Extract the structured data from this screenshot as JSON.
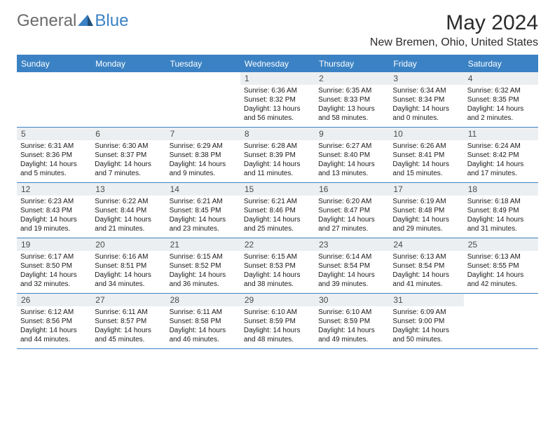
{
  "logo": {
    "part1": "General",
    "part2": "Blue"
  },
  "title": "May 2024",
  "location": "New Bremen, Ohio, United States",
  "colors": {
    "header_bg": "#3b82c4",
    "header_text": "#ffffff",
    "daynum_bg": "#eceff1",
    "border": "#3b82c4",
    "logo_gray": "#6b6b6b",
    "logo_blue": "#3b82c4"
  },
  "day_names": [
    "Sunday",
    "Monday",
    "Tuesday",
    "Wednesday",
    "Thursday",
    "Friday",
    "Saturday"
  ],
  "weeks": [
    [
      {
        "n": "",
        "sr": "",
        "ss": "",
        "dl": ""
      },
      {
        "n": "",
        "sr": "",
        "ss": "",
        "dl": ""
      },
      {
        "n": "",
        "sr": "",
        "ss": "",
        "dl": ""
      },
      {
        "n": "1",
        "sr": "Sunrise: 6:36 AM",
        "ss": "Sunset: 8:32 PM",
        "dl": "Daylight: 13 hours and 56 minutes."
      },
      {
        "n": "2",
        "sr": "Sunrise: 6:35 AM",
        "ss": "Sunset: 8:33 PM",
        "dl": "Daylight: 13 hours and 58 minutes."
      },
      {
        "n": "3",
        "sr": "Sunrise: 6:34 AM",
        "ss": "Sunset: 8:34 PM",
        "dl": "Daylight: 14 hours and 0 minutes."
      },
      {
        "n": "4",
        "sr": "Sunrise: 6:32 AM",
        "ss": "Sunset: 8:35 PM",
        "dl": "Daylight: 14 hours and 2 minutes."
      }
    ],
    [
      {
        "n": "5",
        "sr": "Sunrise: 6:31 AM",
        "ss": "Sunset: 8:36 PM",
        "dl": "Daylight: 14 hours and 5 minutes."
      },
      {
        "n": "6",
        "sr": "Sunrise: 6:30 AM",
        "ss": "Sunset: 8:37 PM",
        "dl": "Daylight: 14 hours and 7 minutes."
      },
      {
        "n": "7",
        "sr": "Sunrise: 6:29 AM",
        "ss": "Sunset: 8:38 PM",
        "dl": "Daylight: 14 hours and 9 minutes."
      },
      {
        "n": "8",
        "sr": "Sunrise: 6:28 AM",
        "ss": "Sunset: 8:39 PM",
        "dl": "Daylight: 14 hours and 11 minutes."
      },
      {
        "n": "9",
        "sr": "Sunrise: 6:27 AM",
        "ss": "Sunset: 8:40 PM",
        "dl": "Daylight: 14 hours and 13 minutes."
      },
      {
        "n": "10",
        "sr": "Sunrise: 6:26 AM",
        "ss": "Sunset: 8:41 PM",
        "dl": "Daylight: 14 hours and 15 minutes."
      },
      {
        "n": "11",
        "sr": "Sunrise: 6:24 AM",
        "ss": "Sunset: 8:42 PM",
        "dl": "Daylight: 14 hours and 17 minutes."
      }
    ],
    [
      {
        "n": "12",
        "sr": "Sunrise: 6:23 AM",
        "ss": "Sunset: 8:43 PM",
        "dl": "Daylight: 14 hours and 19 minutes."
      },
      {
        "n": "13",
        "sr": "Sunrise: 6:22 AM",
        "ss": "Sunset: 8:44 PM",
        "dl": "Daylight: 14 hours and 21 minutes."
      },
      {
        "n": "14",
        "sr": "Sunrise: 6:21 AM",
        "ss": "Sunset: 8:45 PM",
        "dl": "Daylight: 14 hours and 23 minutes."
      },
      {
        "n": "15",
        "sr": "Sunrise: 6:21 AM",
        "ss": "Sunset: 8:46 PM",
        "dl": "Daylight: 14 hours and 25 minutes."
      },
      {
        "n": "16",
        "sr": "Sunrise: 6:20 AM",
        "ss": "Sunset: 8:47 PM",
        "dl": "Daylight: 14 hours and 27 minutes."
      },
      {
        "n": "17",
        "sr": "Sunrise: 6:19 AM",
        "ss": "Sunset: 8:48 PM",
        "dl": "Daylight: 14 hours and 29 minutes."
      },
      {
        "n": "18",
        "sr": "Sunrise: 6:18 AM",
        "ss": "Sunset: 8:49 PM",
        "dl": "Daylight: 14 hours and 31 minutes."
      }
    ],
    [
      {
        "n": "19",
        "sr": "Sunrise: 6:17 AM",
        "ss": "Sunset: 8:50 PM",
        "dl": "Daylight: 14 hours and 32 minutes."
      },
      {
        "n": "20",
        "sr": "Sunrise: 6:16 AM",
        "ss": "Sunset: 8:51 PM",
        "dl": "Daylight: 14 hours and 34 minutes."
      },
      {
        "n": "21",
        "sr": "Sunrise: 6:15 AM",
        "ss": "Sunset: 8:52 PM",
        "dl": "Daylight: 14 hours and 36 minutes."
      },
      {
        "n": "22",
        "sr": "Sunrise: 6:15 AM",
        "ss": "Sunset: 8:53 PM",
        "dl": "Daylight: 14 hours and 38 minutes."
      },
      {
        "n": "23",
        "sr": "Sunrise: 6:14 AM",
        "ss": "Sunset: 8:54 PM",
        "dl": "Daylight: 14 hours and 39 minutes."
      },
      {
        "n": "24",
        "sr": "Sunrise: 6:13 AM",
        "ss": "Sunset: 8:54 PM",
        "dl": "Daylight: 14 hours and 41 minutes."
      },
      {
        "n": "25",
        "sr": "Sunrise: 6:13 AM",
        "ss": "Sunset: 8:55 PM",
        "dl": "Daylight: 14 hours and 42 minutes."
      }
    ],
    [
      {
        "n": "26",
        "sr": "Sunrise: 6:12 AM",
        "ss": "Sunset: 8:56 PM",
        "dl": "Daylight: 14 hours and 44 minutes."
      },
      {
        "n": "27",
        "sr": "Sunrise: 6:11 AM",
        "ss": "Sunset: 8:57 PM",
        "dl": "Daylight: 14 hours and 45 minutes."
      },
      {
        "n": "28",
        "sr": "Sunrise: 6:11 AM",
        "ss": "Sunset: 8:58 PM",
        "dl": "Daylight: 14 hours and 46 minutes."
      },
      {
        "n": "29",
        "sr": "Sunrise: 6:10 AM",
        "ss": "Sunset: 8:59 PM",
        "dl": "Daylight: 14 hours and 48 minutes."
      },
      {
        "n": "30",
        "sr": "Sunrise: 6:10 AM",
        "ss": "Sunset: 8:59 PM",
        "dl": "Daylight: 14 hours and 49 minutes."
      },
      {
        "n": "31",
        "sr": "Sunrise: 6:09 AM",
        "ss": "Sunset: 9:00 PM",
        "dl": "Daylight: 14 hours and 50 minutes."
      },
      {
        "n": "",
        "sr": "",
        "ss": "",
        "dl": ""
      }
    ]
  ]
}
